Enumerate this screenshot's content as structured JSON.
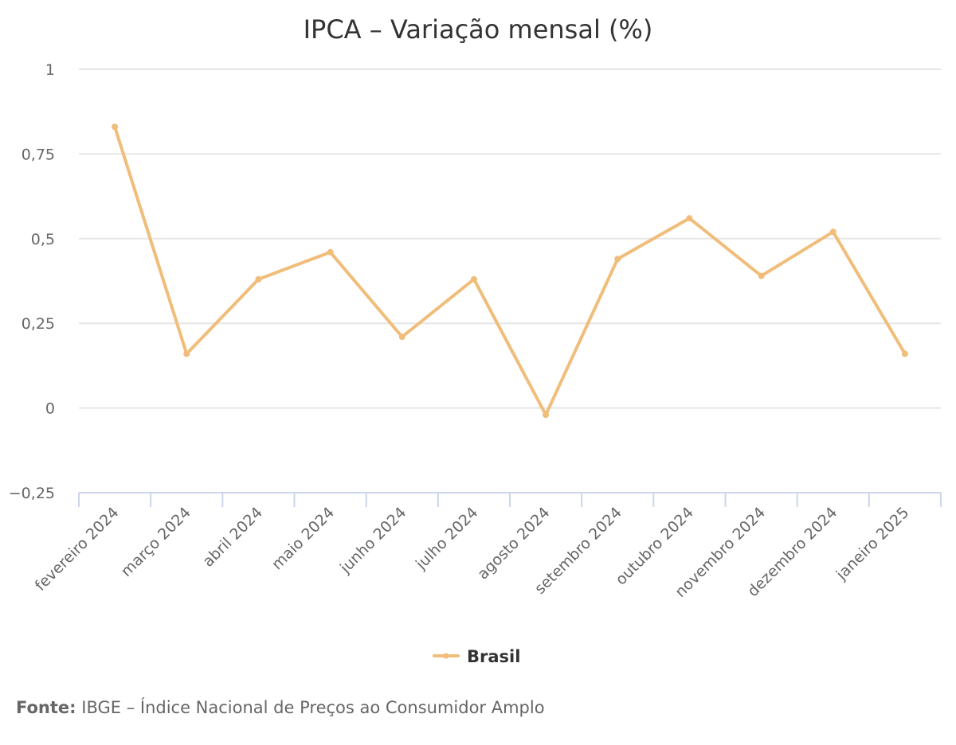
{
  "chart_data": {
    "type": "line",
    "title": "IPCA – Variação mensal (%)",
    "xlabel": "",
    "ylabel": "",
    "categories": [
      "fevereiro 2024",
      "março 2024",
      "abril 2024",
      "maio 2024",
      "junho 2024",
      "julho 2024",
      "agosto 2024",
      "setembro 2024",
      "outubro 2024",
      "novembro 2024",
      "dezembro 2024",
      "janeiro 2025"
    ],
    "series": [
      {
        "name": "Brasil",
        "color": "#f0bd7a",
        "values": [
          0.83,
          0.16,
          0.38,
          0.46,
          0.21,
          0.38,
          -0.02,
          0.44,
          0.56,
          0.39,
          0.52,
          0.16
        ]
      }
    ],
    "ylim": [
      -0.25,
      1
    ],
    "yticks": [
      1,
      0.75,
      0.5,
      0.25,
      0,
      -0.25
    ],
    "ytick_labels": [
      "1",
      "0,75",
      "0,5",
      "0,25",
      "0",
      "−0,25"
    ],
    "grid": true,
    "legend_position": "bottom-center"
  },
  "source": {
    "label": "Fonte:",
    "text": "IBGE – Índice Nacional de Preços ao Consumidor Amplo"
  }
}
